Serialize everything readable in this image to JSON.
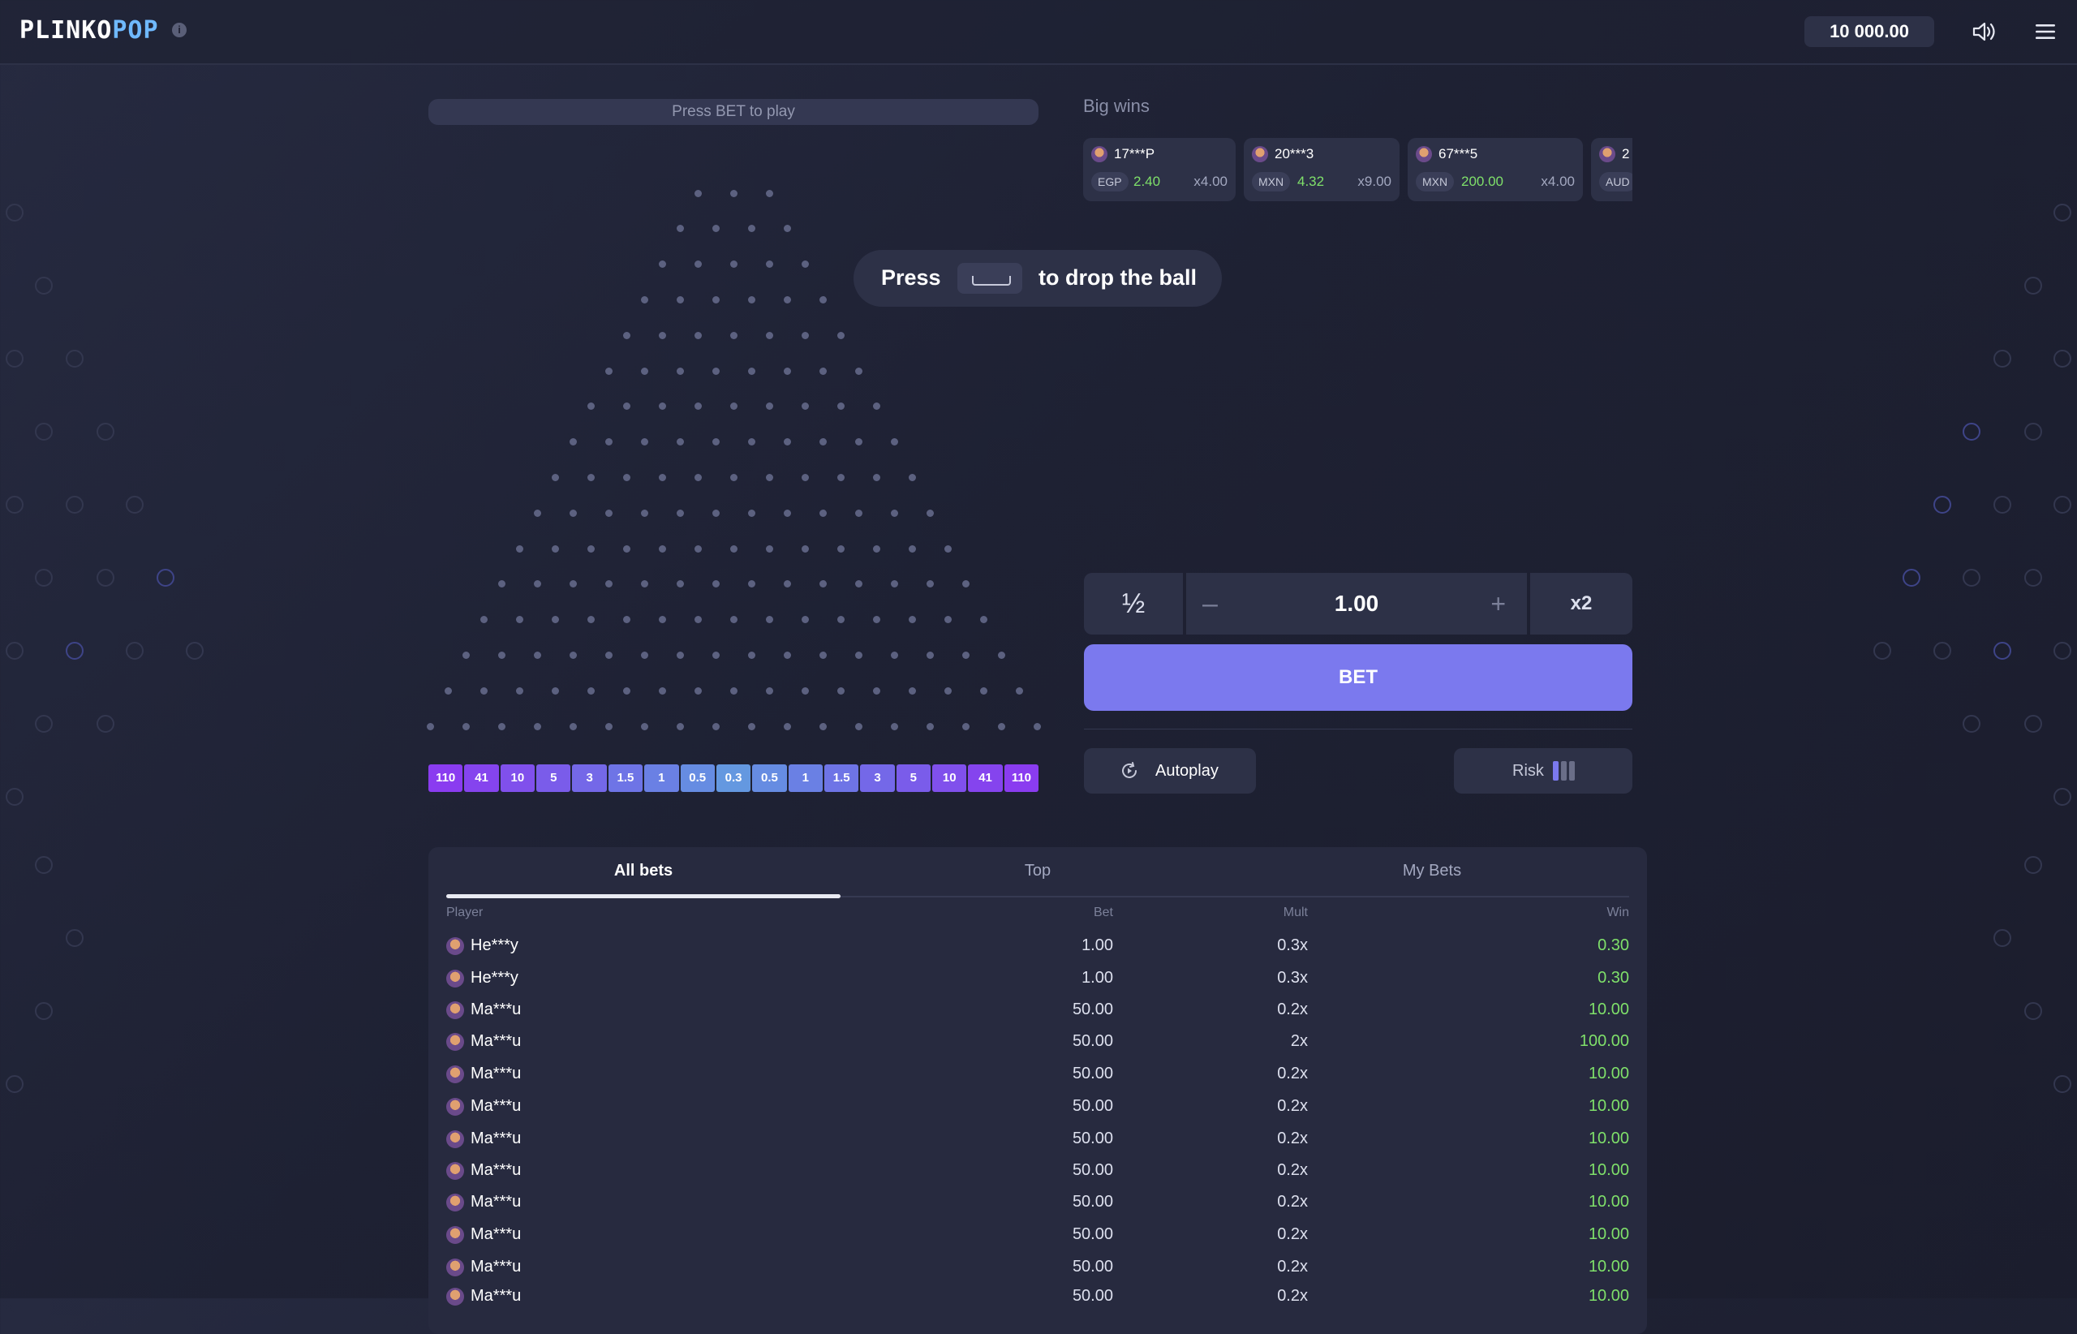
{
  "header": {
    "logo_part1": "PLINKO",
    "logo_part2": "POP",
    "info_glyph": "i",
    "balance": "10 000.00",
    "icons": [
      "info-icon",
      "speaker-icon",
      "hamburger-menu-icon"
    ]
  },
  "game": {
    "status_text": "Press BET to play",
    "peg_rows": 16,
    "hint": {
      "before": "Press",
      "key": "space-key-icon",
      "after": "to drop the ball"
    },
    "multipliers": [
      "110",
      "41",
      "10",
      "5",
      "3",
      "1.5",
      "1",
      "0.5",
      "0.3",
      "0.5",
      "1",
      "1.5",
      "3",
      "5",
      "10",
      "41",
      "110"
    ],
    "slot_colors": [
      "#8a3cf0",
      "#8544ee",
      "#8050ec",
      "#7a5cea",
      "#7468e8",
      "#6e74e6",
      "#6a80e4",
      "#668ce2",
      "#6498e0",
      "#668ce2",
      "#6a80e4",
      "#6e74e6",
      "#7468e8",
      "#7a5cea",
      "#8050ec",
      "#8544ee",
      "#8a3cf0"
    ]
  },
  "big_wins": {
    "title": "Big wins",
    "cards": [
      {
        "name": "17***P",
        "currency": "EGP",
        "amount": "2.40",
        "mult": "x4.00"
      },
      {
        "name": "20***3",
        "currency": "MXN",
        "amount": "4.32",
        "mult": "x9.00"
      },
      {
        "name": "67***5",
        "currency": "MXN",
        "amount": "200.00",
        "mult": "x4.00"
      },
      {
        "name": "2",
        "currency": "AUD",
        "amount": "",
        "mult": ""
      }
    ]
  },
  "controls": {
    "half_label": "½",
    "minus_label": "–",
    "amount": "1.00",
    "plus_label": "+",
    "double_label": "x2",
    "bet_label": "BET",
    "autoplay_label": "Autoplay",
    "risk_label": "Risk",
    "risk_level": 1,
    "risk_levels_total": 3,
    "accent_color": "#7b79ee"
  },
  "bets": {
    "tabs": [
      "All bets",
      "Top",
      "My Bets"
    ],
    "active_tab": 0,
    "columns": {
      "player": "Player",
      "bet": "Bet",
      "mult": "Mult",
      "win": "Win"
    },
    "rows": [
      {
        "player": "He***y",
        "bet": "1.00",
        "mult": "0.3x",
        "win": "0.30"
      },
      {
        "player": "He***y",
        "bet": "1.00",
        "mult": "0.3x",
        "win": "0.30"
      },
      {
        "player": "Ma***u",
        "bet": "50.00",
        "mult": "0.2x",
        "win": "10.00"
      },
      {
        "player": "Ma***u",
        "bet": "50.00",
        "mult": "2x",
        "win": "100.00"
      },
      {
        "player": "Ma***u",
        "bet": "50.00",
        "mult": "0.2x",
        "win": "10.00"
      },
      {
        "player": "Ma***u",
        "bet": "50.00",
        "mult": "0.2x",
        "win": "10.00"
      },
      {
        "player": "Ma***u",
        "bet": "50.00",
        "mult": "0.2x",
        "win": "10.00"
      },
      {
        "player": "Ma***u",
        "bet": "50.00",
        "mult": "0.2x",
        "win": "10.00"
      },
      {
        "player": "Ma***u",
        "bet": "50.00",
        "mult": "0.2x",
        "win": "10.00"
      },
      {
        "player": "Ma***u",
        "bet": "50.00",
        "mult": "0.2x",
        "win": "10.00"
      },
      {
        "player": "Ma***u",
        "bet": "50.00",
        "mult": "0.2x",
        "win": "10.00"
      },
      {
        "player": "Ma***u",
        "bet": "50.00",
        "mult": "0.2x",
        "win": "10.00"
      }
    ],
    "win_color": "#7fe06a"
  }
}
